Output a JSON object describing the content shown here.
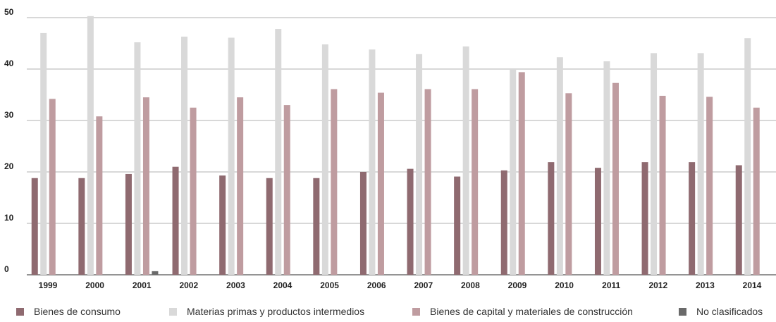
{
  "chart_data": {
    "type": "bar",
    "categories": [
      "1999",
      "2000",
      "2001",
      "2002",
      "2003",
      "2004",
      "2005",
      "2006",
      "2007",
      "2008",
      "2009",
      "2010",
      "2011",
      "2012",
      "2013",
      "2014"
    ],
    "series": [
      {
        "name": "Bienes de consumo",
        "color": "#8f6a70",
        "values": [
          18.8,
          18.8,
          19.6,
          21.0,
          19.3,
          18.8,
          18.8,
          20.0,
          20.6,
          19.1,
          20.3,
          21.9,
          20.8,
          21.9,
          21.9,
          21.3
        ]
      },
      {
        "name": "Materias primas y productos intermedios",
        "color": "#d9d9d9",
        "values": [
          47.0,
          50.3,
          45.2,
          46.3,
          46.1,
          47.8,
          44.8,
          43.8,
          42.9,
          44.4,
          40.0,
          42.3,
          41.5,
          43.1,
          43.1,
          46.0
        ]
      },
      {
        "name": "Bienes de capital y materiales de construcción",
        "color": "#bf9ca0",
        "values": [
          34.2,
          30.8,
          34.5,
          32.5,
          34.5,
          33.0,
          36.1,
          35.4,
          36.1,
          36.1,
          39.4,
          35.3,
          37.3,
          34.8,
          34.6,
          32.5
        ]
      },
      {
        "name": "No clasificados",
        "color": "#6a6a6a",
        "values": [
          0,
          0,
          0.7,
          0,
          0,
          0,
          0,
          0,
          0,
          0,
          0,
          0,
          0,
          0,
          0,
          0
        ]
      }
    ],
    "y_ticks": [
      "0",
      "10",
      "20",
      "30",
      "40",
      "50"
    ],
    "ylim": [
      0,
      50
    ],
    "grid": true,
    "legend_position": "bottom",
    "title": "",
    "xlabel": "",
    "ylabel": ""
  }
}
